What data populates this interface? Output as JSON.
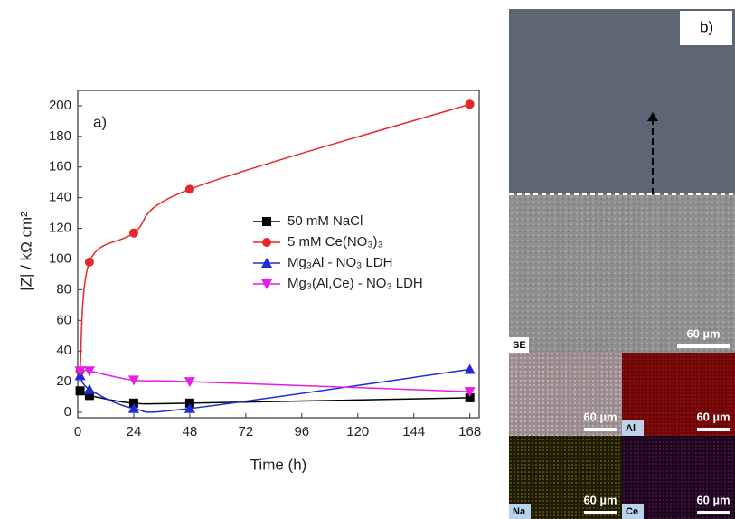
{
  "chart_data": {
    "type": "line",
    "panel_label": "a)",
    "x_label": "Time (h)",
    "y_label": "|Z| / kΩ cm²",
    "x": [
      1,
      5,
      24,
      48,
      168
    ],
    "xlim": [
      0,
      172
    ],
    "xticks": [
      0,
      24,
      48,
      72,
      96,
      120,
      144,
      168
    ],
    "ylim": [
      0,
      210
    ],
    "yticks": [
      0,
      20,
      40,
      60,
      80,
      100,
      120,
      140,
      160,
      180,
      200
    ],
    "series": [
      {
        "name": "50 mM NaCl",
        "color": "#000000",
        "marker": "square",
        "values": [
          14,
          11,
          6,
          6,
          9.5
        ]
      },
      {
        "name": "5 mM Ce(NO₃)₃",
        "color": "#e8262a",
        "marker": "circle",
        "values": [
          27,
          98,
          117,
          145.5,
          201
        ]
      },
      {
        "name": "Mg₃Al - NO₃ LDH",
        "color": "#1f2bd6",
        "marker": "triangle-up",
        "values": [
          24,
          15,
          2.5,
          2.5,
          28
        ]
      },
      {
        "name": "Mg₃(Al,Ce) - NO₃ LDH",
        "color": "#e51ee5",
        "marker": "triangle-down",
        "values": [
          27,
          27,
          21,
          20,
          13.5
        ]
      }
    ]
  },
  "panel_b": {
    "label": "b)",
    "images": [
      {
        "scale": "60 µm",
        "label": "SE"
      },
      {
        "scale": "60 µm"
      },
      {
        "scale": "60 µm",
        "label": "Al"
      },
      {
        "scale": "60 µm",
        "label": "Na"
      },
      {
        "scale": "60 µm",
        "label": "Ce"
      }
    ]
  }
}
